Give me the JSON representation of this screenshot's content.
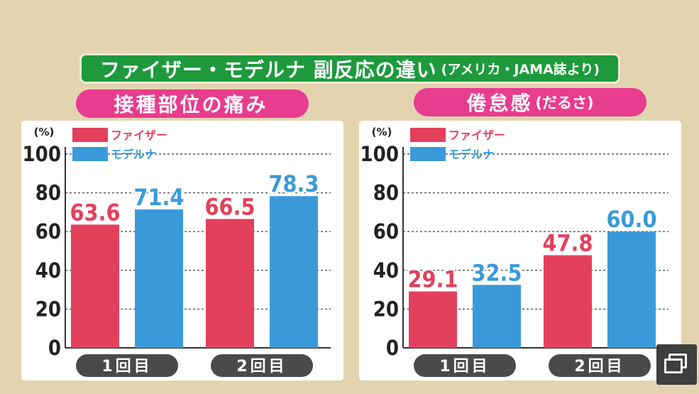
{
  "header": {
    "title": "ファイザー・モデルナ 副反応の違い",
    "source": "(アメリカ・JAMA誌より)"
  },
  "colors": {
    "pfizer": "#e3405c",
    "moderna": "#3a9ad9",
    "header_bg": "#1e9a3d",
    "pill_bg": "#e83c8f",
    "background": "#e3d4b0"
  },
  "chart_data": [
    {
      "type": "bar",
      "title": "接種部位の痛み",
      "subtitle": "",
      "ylabel": "(%)",
      "ylim": [
        0,
        100
      ],
      "yticks": [
        "0",
        "20",
        "40",
        "60",
        "80",
        "100"
      ],
      "grid": true,
      "legend": "top-left",
      "categories": [
        "1回目",
        "2回目"
      ],
      "series": [
        {
          "name": "ファイザー",
          "values": [
            63.6,
            66.5
          ],
          "labels": [
            "63.6",
            "66.5"
          ]
        },
        {
          "name": "モデルナ",
          "values": [
            71.4,
            78.3
          ],
          "labels": [
            "71.4",
            "78.3"
          ]
        }
      ]
    },
    {
      "type": "bar",
      "title": "倦怠感",
      "subtitle": "(だるさ)",
      "ylabel": "(%)",
      "ylim": [
        0,
        100
      ],
      "yticks": [
        "0",
        "20",
        "40",
        "60",
        "80",
        "100"
      ],
      "grid": true,
      "legend": "top-left",
      "categories": [
        "1回目",
        "2回目"
      ],
      "series": [
        {
          "name": "ファイザー",
          "values": [
            29.1,
            47.8
          ],
          "labels": [
            "29.1",
            "47.8"
          ]
        },
        {
          "name": "モデルナ",
          "values": [
            32.5,
            60.0
          ],
          "labels": [
            "32.5",
            "60.0"
          ]
        }
      ]
    }
  ]
}
